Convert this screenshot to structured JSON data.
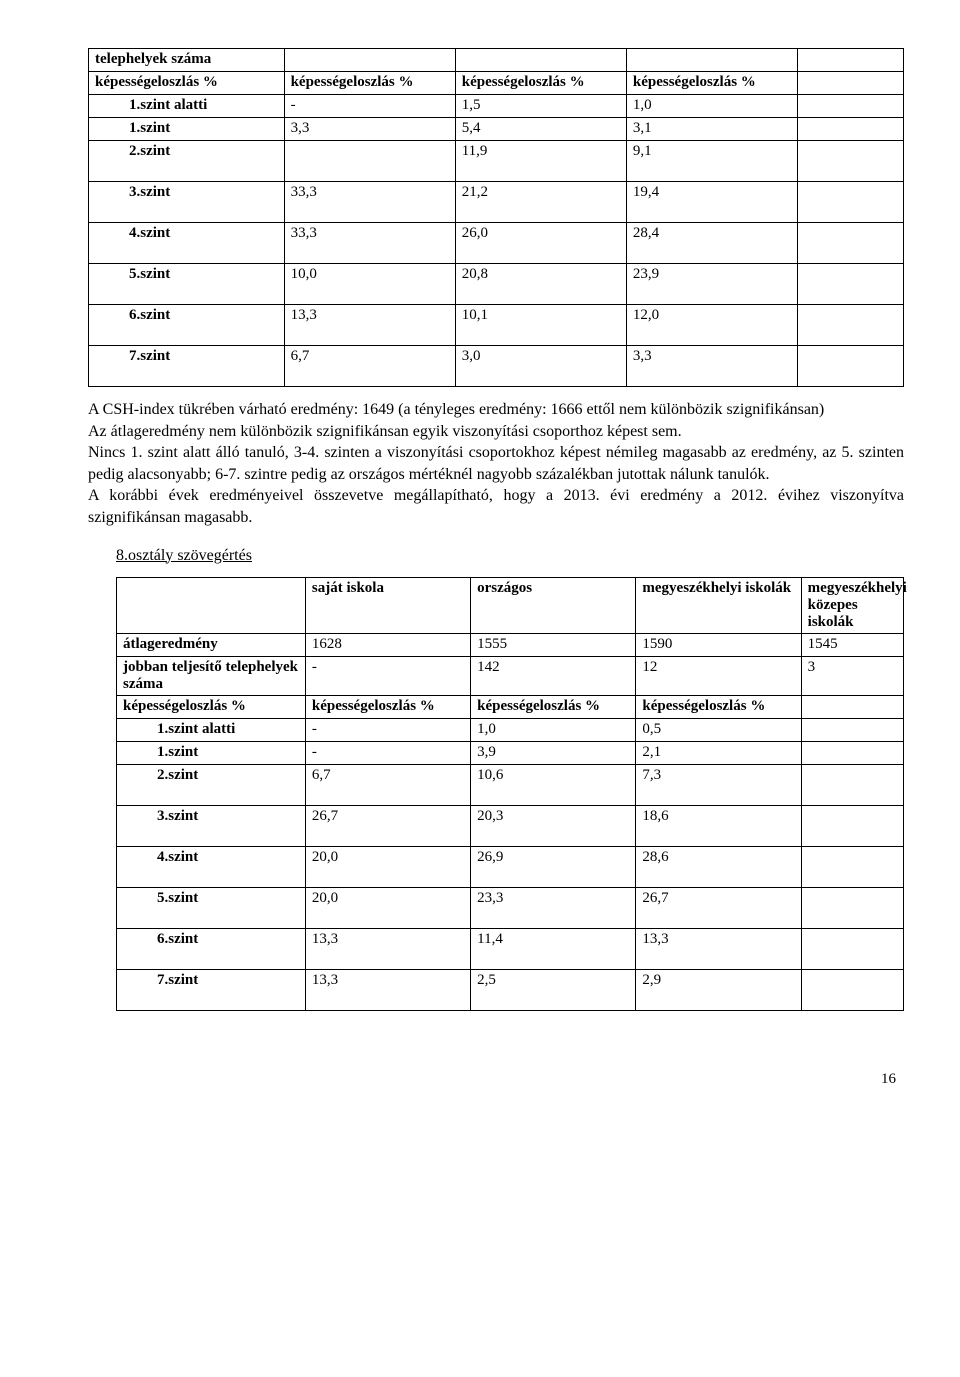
{
  "table1": {
    "rows": [
      {
        "a": "telephelyek száma",
        "abold": true,
        "b": "",
        "c": "",
        "d": "",
        "e": "",
        "tall": false
      },
      {
        "a": "képességeloszlás %",
        "abold": true,
        "b": "képességeloszlás %",
        "bbold": true,
        "c": "képességeloszlás %",
        "cbold": true,
        "d": "képességeloszlás %",
        "dbold": true,
        "e": "",
        "tall": false
      },
      {
        "a": "1.szint alatti",
        "abold": true,
        "aind": true,
        "b": "-",
        "c": "1,5",
        "d": "1,0",
        "e": "",
        "tall": false
      },
      {
        "a": "1.szint",
        "abold": true,
        "aind": true,
        "b": "3,3",
        "c": "5,4",
        "d": "3,1",
        "e": "",
        "tall": false
      },
      {
        "a": "2.szint",
        "abold": true,
        "aind": true,
        "b": "",
        "c": "11,9",
        "d": "9,1",
        "e": "",
        "tall": true
      },
      {
        "a": "3.szint",
        "abold": true,
        "aind": true,
        "b": "33,3",
        "c": "21,2",
        "d": "19,4",
        "e": "",
        "tall": true
      },
      {
        "a": "4.szint",
        "abold": true,
        "aind": true,
        "b": "33,3",
        "c": "26,0",
        "d": "28,4",
        "e": "",
        "tall": true
      },
      {
        "a": "5.szint",
        "abold": true,
        "aind": true,
        "b": "10,0",
        "c": "20,8",
        "d": "23,9",
        "e": "",
        "tall": true
      },
      {
        "a": "6.szint",
        "abold": true,
        "aind": true,
        "b": "13,3",
        "c": "10,1",
        "d": "12,0",
        "e": "",
        "tall": true
      },
      {
        "a": "7.szint",
        "abold": true,
        "aind": true,
        "b": "6,7",
        "c": "3,0",
        "d": "3,3",
        "e": "",
        "tall": true
      }
    ]
  },
  "paragraph": "A CSH-index tükrében várható eredmény: 1649 (a tényleges eredmény: 1666 ettől nem különbözik szignifikánsan)\nAz átlageredmény nem különbözik szignifikánsan egyik viszonyítási csoporthoz képest sem.\nNincs 1. szint alatt álló tanuló, 3-4. szinten a viszonyítási csoportokhoz képest némileg magasabb az eredmény, az 5. szinten pedig alacsonyabb; 6-7. szintre pedig az országos mértéknél nagyobb százalékban jutottak nálunk tanulók.\nA korábbi évek eredményeivel összevetve megállapítható, hogy a 2013. évi eredmény a 2012. évihez viszonyítva szignifikánsan magasabb.",
  "section_heading": "8.osztály szövegértés",
  "table2": {
    "header": {
      "a": "",
      "b": "saját iskola",
      "c": "országos",
      "d": "megyeszékhelyi iskolák",
      "e": "megyeszékhelyi közepes iskolák"
    },
    "rows": [
      {
        "a": "átlageredmény",
        "abold": true,
        "b": "1628",
        "c": "1555",
        "d": "1590",
        "e": "1545",
        "tall": false
      },
      {
        "a": "jobban teljesítő telephelyek száma",
        "abold": true,
        "b": "-",
        "c": "142",
        "d": "12",
        "e": "3",
        "tall": false
      },
      {
        "a": "képességeloszlás %",
        "abold": true,
        "b": "képességeloszlás %",
        "bbold": true,
        "c": "képességeloszlás %",
        "cbold": true,
        "d": "képességeloszlás %",
        "dbold": true,
        "e": "",
        "tall": false
      },
      {
        "a": "1.szint alatti",
        "abold": true,
        "aind": true,
        "b": "-",
        "c": "1,0",
        "d": "0,5",
        "e": "",
        "tall": false
      },
      {
        "a": "1.szint",
        "abold": true,
        "aind": true,
        "b": "-",
        "c": "3,9",
        "d": "2,1",
        "e": "",
        "tall": false
      },
      {
        "a": "2.szint",
        "abold": true,
        "aind": true,
        "b": "6,7",
        "c": "10,6",
        "d": "7,3",
        "e": "",
        "tall": true
      },
      {
        "a": "3.szint",
        "abold": true,
        "aind": true,
        "b": "26,7",
        "c": "20,3",
        "d": "18,6",
        "e": "",
        "tall": true
      },
      {
        "a": "4.szint",
        "abold": true,
        "aind": true,
        "b": "20,0",
        "c": "26,9",
        "d": "28,6",
        "e": "",
        "tall": true
      },
      {
        "a": "5.szint",
        "abold": true,
        "aind": true,
        "b": "20,0",
        "c": "23,3",
        "d": "26,7",
        "e": "",
        "tall": true
      },
      {
        "a": "6.szint",
        "abold": true,
        "aind": true,
        "b": "13,3",
        "c": "11,4",
        "d": "13,3",
        "e": "",
        "tall": true
      },
      {
        "a": "7.szint",
        "abold": true,
        "aind": true,
        "b": "13,3",
        "c": "2,5",
        "d": "2,9",
        "e": "",
        "tall": true
      }
    ]
  },
  "page_number": "16"
}
